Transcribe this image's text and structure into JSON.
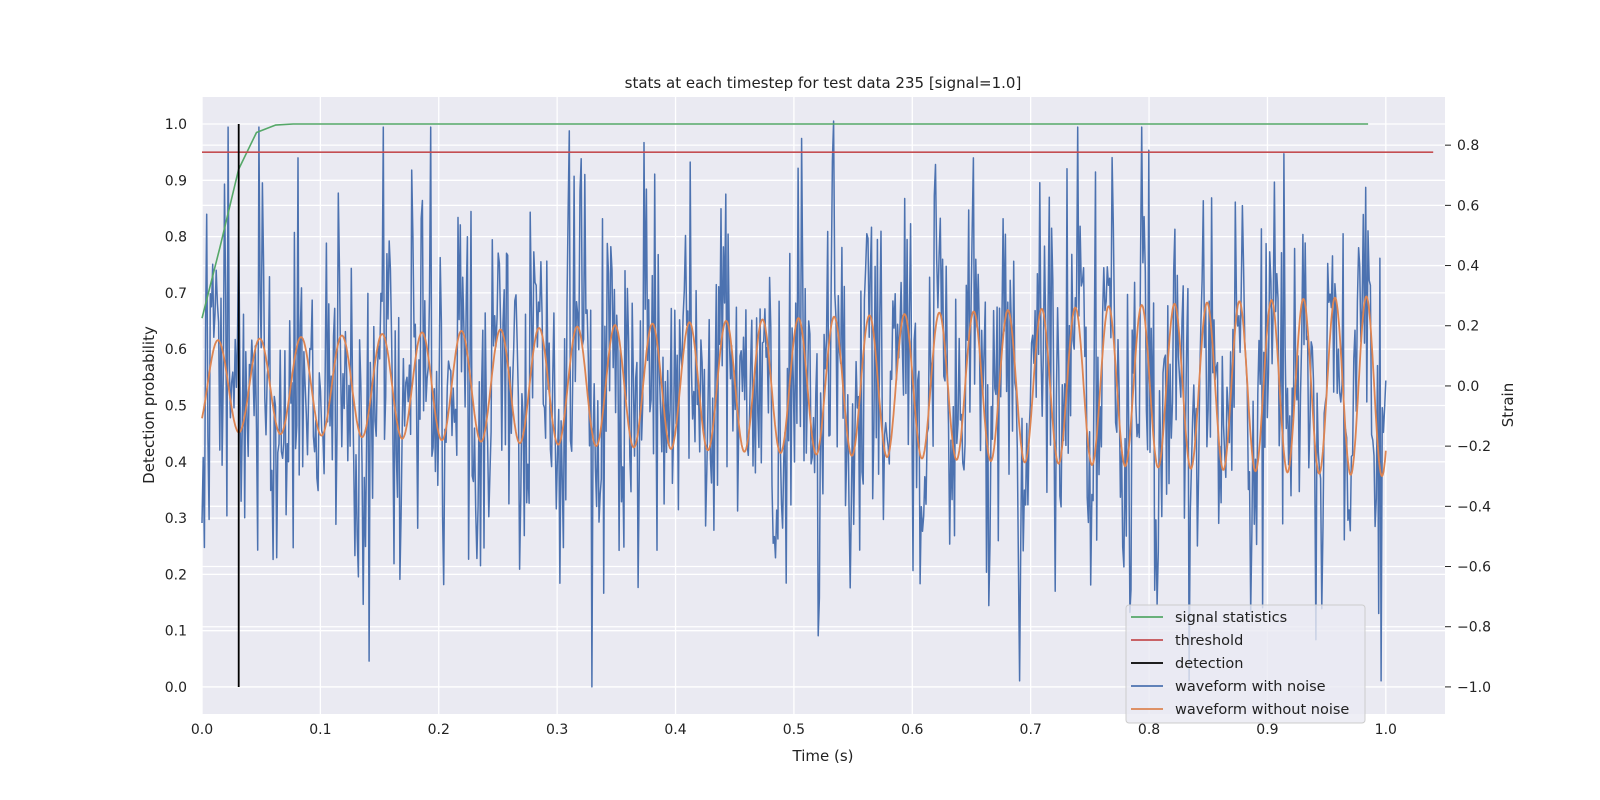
{
  "chart_data": {
    "type": "line",
    "title": "stats at each timestep for test data 235 [signal=1.0]",
    "xlabel": "Time (s)",
    "ylabel": "Detection probability",
    "y2label": "Strain",
    "xlim": [
      0.0,
      1.05
    ],
    "ylim": [
      -0.048,
      1.048
    ],
    "y2lim": [
      -1.09,
      0.96
    ],
    "xticks": [
      "0.0",
      "0.1",
      "0.2",
      "0.3",
      "0.4",
      "0.5",
      "0.6",
      "0.7",
      "0.8",
      "0.9",
      "1.0"
    ],
    "yticks": [
      "0.0",
      "0.1",
      "0.2",
      "0.3",
      "0.4",
      "0.5",
      "0.6",
      "0.7",
      "0.8",
      "0.9",
      "1.0"
    ],
    "y2ticks": [
      "−1.0",
      "−0.8",
      "−0.6",
      "−0.4",
      "−0.2",
      "0.0",
      "0.2",
      "0.4",
      "0.6",
      "0.8"
    ],
    "grid": true,
    "legend_position": "lower-right",
    "series": [
      {
        "name": "signal statistics",
        "axis": "left",
        "color": "#55a868",
        "x": [
          0.0,
          0.015,
          0.031,
          0.046,
          0.062,
          0.077,
          0.1,
          0.2,
          0.3,
          0.4,
          0.5,
          0.6,
          0.7,
          0.8,
          0.9,
          0.985
        ],
        "y": [
          0.655,
          0.78,
          0.92,
          0.985,
          0.998,
          1.0,
          1.0,
          1.0,
          1.0,
          1.0,
          1.0,
          1.0,
          1.0,
          1.0,
          1.0,
          1.0
        ]
      },
      {
        "name": "threshold",
        "axis": "left",
        "color": "#c44e52",
        "x": [
          0.0,
          1.04
        ],
        "y": [
          0.95,
          0.95
        ]
      },
      {
        "name": "detection",
        "axis": "left",
        "color": "#000000",
        "x": [
          0.031,
          0.031
        ],
        "y": [
          0.0,
          1.0
        ]
      },
      {
        "name": "waveform with noise",
        "axis": "right",
        "color": "#4c72b0",
        "generated": true,
        "x_range": [
          0.0,
          1.0
        ],
        "samples": 1000,
        "noise_std": 0.28,
        "notable_points": [
          [
            0.534,
            0.88
          ],
          [
            0.329,
            -1.0
          ],
          [
            0.946,
            -0.74
          ]
        ]
      },
      {
        "name": "waveform without noise",
        "axis": "right",
        "color": "#dd8452",
        "generated": true,
        "x_range": [
          0.0,
          1.0
        ],
        "samples": 1600,
        "amp_start": 0.15,
        "amp_end": 0.3,
        "freq_start": 28,
        "freq_end": 38
      }
    ]
  }
}
